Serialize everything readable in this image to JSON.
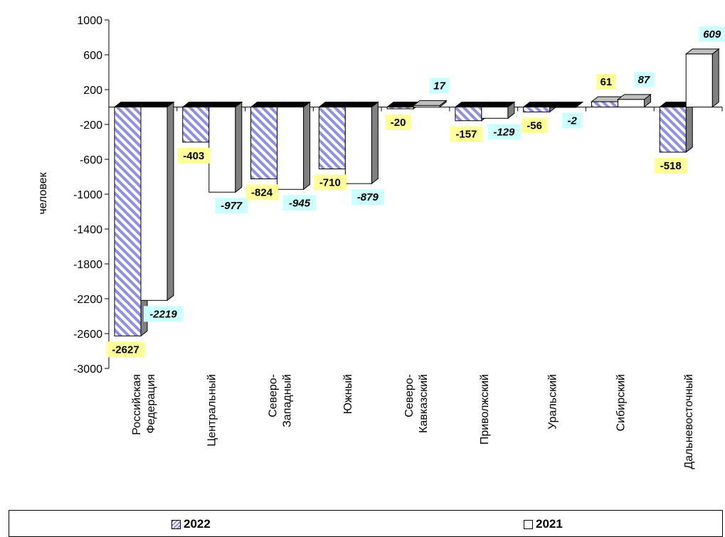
{
  "chart_data": {
    "type": "bar",
    "ylabel": "человек",
    "ylim": [
      -3000,
      1000
    ],
    "yticks": [
      1000,
      600,
      200,
      -200,
      -600,
      -1000,
      -1400,
      -1800,
      -2200,
      -2600,
      -3000
    ],
    "categories": [
      [
        "Российская",
        "Федерация"
      ],
      [
        "Центральный"
      ],
      [
        "Северо-",
        "Западный"
      ],
      [
        "Южный"
      ],
      [
        "Северо-",
        "Кавказский"
      ],
      [
        "Приволжский"
      ],
      [
        "Уральский"
      ],
      [
        "Сибирский"
      ],
      [
        "Дальневосточный"
      ]
    ],
    "series": [
      {
        "name": "2022",
        "values": [
          -2627,
          -403,
          -824,
          -710,
          -20,
          -157,
          -56,
          61,
          -518
        ],
        "labels": [
          "-2627",
          "-403",
          "-824",
          "-710",
          "-20",
          "-157",
          "-56",
          "61",
          "-518"
        ],
        "label_bg": "#ffff99",
        "label_italic": false,
        "pattern": "blue-diagonal-hatch"
      },
      {
        "name": "2021",
        "values": [
          -2219,
          -977,
          -945,
          -879,
          17,
          -129,
          -2,
          87,
          609
        ],
        "labels": [
          "-2219",
          "-977",
          "-945",
          "-879",
          "17",
          "-129",
          "-2",
          "87",
          "609"
        ],
        "label_bg": "#ccffff",
        "label_italic": true,
        "pattern": "white"
      }
    ],
    "legend": {
      "position": "bottom",
      "items": [
        "2022",
        "2021"
      ]
    },
    "colors": {
      "hatch": "#8f8fe8",
      "bar_side": "#808080",
      "bar_top": "#c0c0c0"
    },
    "grid": false
  }
}
